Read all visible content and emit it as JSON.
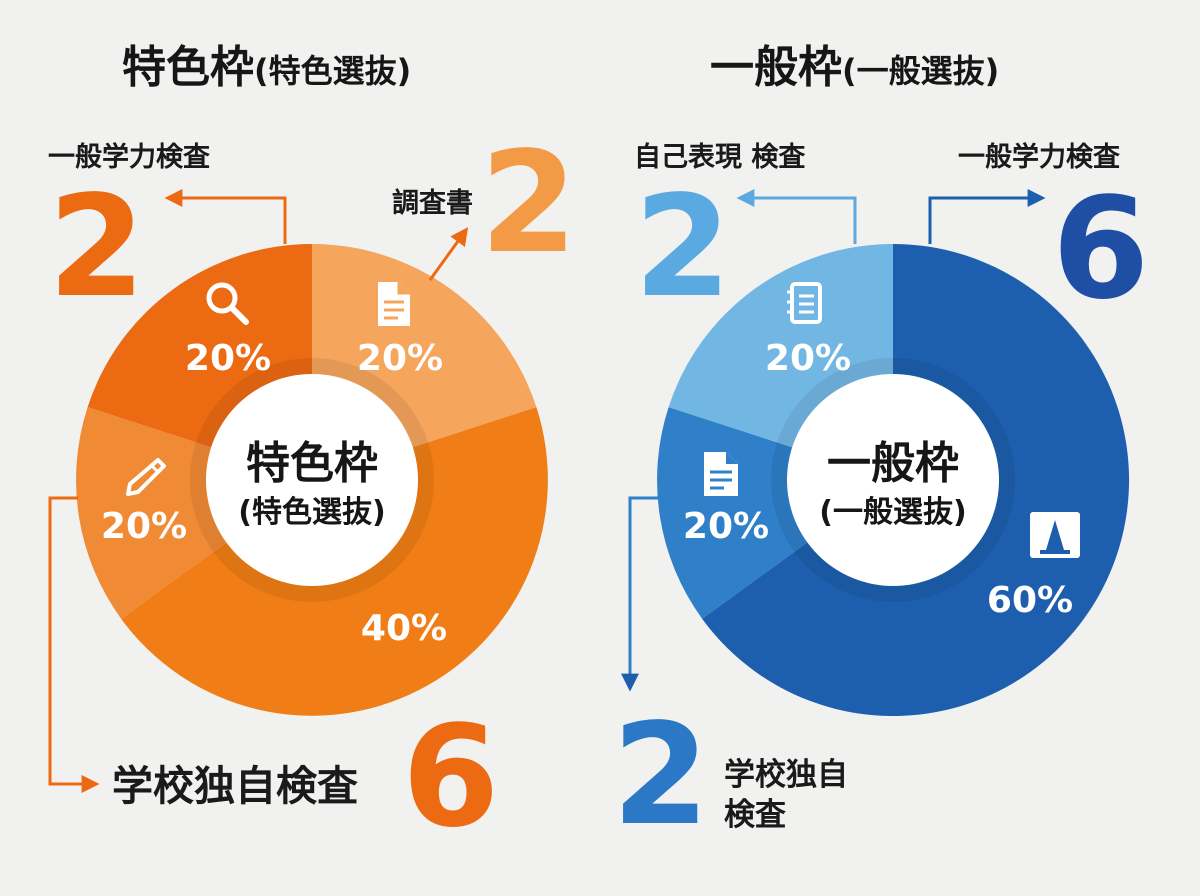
{
  "colors": {
    "orange_dark": "#ec6a12",
    "orange_mid": "#f08a35",
    "orange_light": "#f5a55c",
    "orange_main": "#f07d15",
    "blue_dark": "#1d5fae",
    "blue_mid": "#2f7fc9",
    "blue_light": "#72b6e4",
    "blue_deep": "#1f3f97"
  },
  "chart_data": [
    {
      "type": "pie",
      "title": "特色枠",
      "title_sub": "(特色選抜)",
      "center_label": "特色枠",
      "center_sub": "(特色選抜)",
      "series": [
        {
          "label": "調査書",
          "value": 2,
          "percent": "20%",
          "icon": "document-icon",
          "color": "#f5a55c"
        },
        {
          "label": "学校独自検査",
          "value": 6,
          "percent": "40%",
          "icon": "",
          "color": "#f07d15"
        },
        {
          "label": "",
          "value": null,
          "percent": "20%",
          "icon": "pencil-icon",
          "color": "#f08a35"
        },
        {
          "label": "一般学力検査",
          "value": 2,
          "percent": "20%",
          "icon": "search-icon",
          "color": "#ec6a12"
        }
      ]
    },
    {
      "type": "pie",
      "title": "一般枠",
      "title_sub": "(一般選抜)",
      "center_label": "一般枠",
      "center_sub": "(一般選抜)",
      "series": [
        {
          "label": "一般学力検査",
          "value": 6,
          "percent": "60%",
          "icon": "traffic-cone-icon",
          "color": "#1d5fae"
        },
        {
          "label": "学校独自検査",
          "value": 2,
          "percent": "20%",
          "icon": "document-icon",
          "color": "#2f7fc9"
        },
        {
          "label": "自己表現 検査",
          "value": 2,
          "percent": "20%",
          "icon": "notebook-icon",
          "color": "#72b6e4"
        }
      ]
    }
  ],
  "left": {
    "title": "特色枠",
    "title_sub": "(特色選抜)",
    "label_gakuryoku": "一般学力検査",
    "num_gakuryoku": "2",
    "label_chosasho": "調査書",
    "num_chosasho": "2",
    "label_dokuji": "学校独自検査",
    "num_dokuji": "6"
  },
  "right": {
    "title": "一般枠",
    "title_sub": "(一般選抜)",
    "label_jiko": "自己表現 検査",
    "num_jiko": "2",
    "label_gakuryoku": "一般学力検査",
    "num_gakuryoku": "6",
    "label_dokuji_1": "学校独自",
    "label_dokuji_2": "検査",
    "num_dokuji": "2"
  }
}
